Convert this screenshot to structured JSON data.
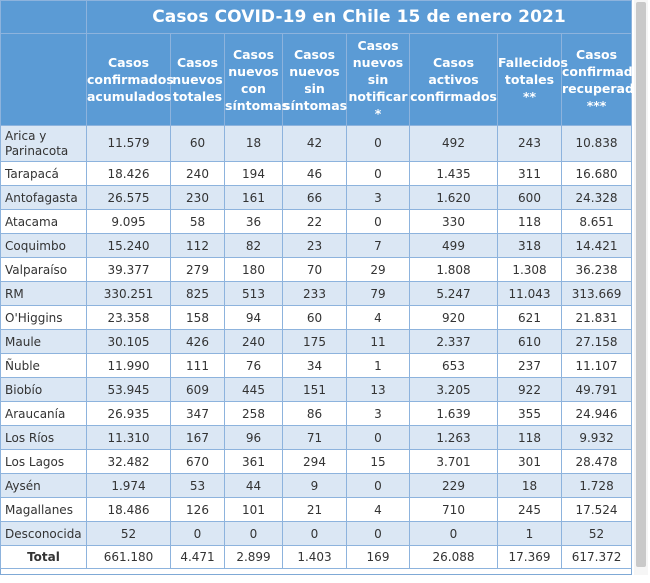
{
  "title": "Casos COVID-19 en Chile 15 de enero 2021",
  "headers": [
    "Casos confirmados acumulados",
    "Casos nuevos totales",
    "Casos nuevos con síntomas",
    "Casos nuevos sin síntomas",
    "Casos nuevos sin notificar *",
    "Casos activos confirmados",
    "Fallecidos totales **",
    "Casos confirmados recuperados ***"
  ],
  "rows": [
    {
      "region": "Arica y Parinacota",
      "values": [
        "11.579",
        "60",
        "18",
        "42",
        "0",
        "492",
        "243",
        "10.838"
      ]
    },
    {
      "region": "Tarapacá",
      "values": [
        "18.426",
        "240",
        "194",
        "46",
        "0",
        "1.435",
        "311",
        "16.680"
      ]
    },
    {
      "region": "Antofagasta",
      "values": [
        "26.575",
        "230",
        "161",
        "66",
        "3",
        "1.620",
        "600",
        "24.328"
      ]
    },
    {
      "region": "Atacama",
      "values": [
        "9.095",
        "58",
        "36",
        "22",
        "0",
        "330",
        "118",
        "8.651"
      ]
    },
    {
      "region": "Coquimbo",
      "values": [
        "15.240",
        "112",
        "82",
        "23",
        "7",
        "499",
        "318",
        "14.421"
      ]
    },
    {
      "region": "Valparaíso",
      "values": [
        "39.377",
        "279",
        "180",
        "70",
        "29",
        "1.808",
        "1.308",
        "36.238"
      ]
    },
    {
      "region": "RM",
      "values": [
        "330.251",
        "825",
        "513",
        "233",
        "79",
        "5.247",
        "11.043",
        "313.669"
      ]
    },
    {
      "region": "O'Higgins",
      "values": [
        "23.358",
        "158",
        "94",
        "60",
        "4",
        "920",
        "621",
        "21.831"
      ]
    },
    {
      "region": "Maule",
      "values": [
        "30.105",
        "426",
        "240",
        "175",
        "11",
        "2.337",
        "610",
        "27.158"
      ]
    },
    {
      "region": "Ñuble",
      "values": [
        "11.990",
        "111",
        "76",
        "34",
        "1",
        "653",
        "237",
        "11.107"
      ]
    },
    {
      "region": "Biobío",
      "values": [
        "53.945",
        "609",
        "445",
        "151",
        "13",
        "3.205",
        "922",
        "49.791"
      ]
    },
    {
      "region": "Araucanía",
      "values": [
        "26.935",
        "347",
        "258",
        "86",
        "3",
        "1.639",
        "355",
        "24.946"
      ]
    },
    {
      "region": "Los Ríos",
      "values": [
        "11.310",
        "167",
        "96",
        "71",
        "0",
        "1.263",
        "118",
        "9.932"
      ]
    },
    {
      "region": "Los Lagos",
      "values": [
        "32.482",
        "670",
        "361",
        "294",
        "15",
        "3.701",
        "301",
        "28.478"
      ]
    },
    {
      "region": "Aysén",
      "values": [
        "1.974",
        "53",
        "44",
        "9",
        "0",
        "229",
        "18",
        "1.728"
      ]
    },
    {
      "region": "Magallanes",
      "values": [
        "18.486",
        "126",
        "101",
        "21",
        "4",
        "710",
        "245",
        "17.524"
      ]
    },
    {
      "region": "Desconocida",
      "values": [
        "52",
        "0",
        "0",
        "0",
        "0",
        "0",
        "1",
        "52"
      ]
    }
  ],
  "total": {
    "label": "Total",
    "values": [
      "661.180",
      "4.471",
      "2.899",
      "1.403",
      "169",
      "26.088",
      "17.369",
      "617.372"
    ]
  }
}
